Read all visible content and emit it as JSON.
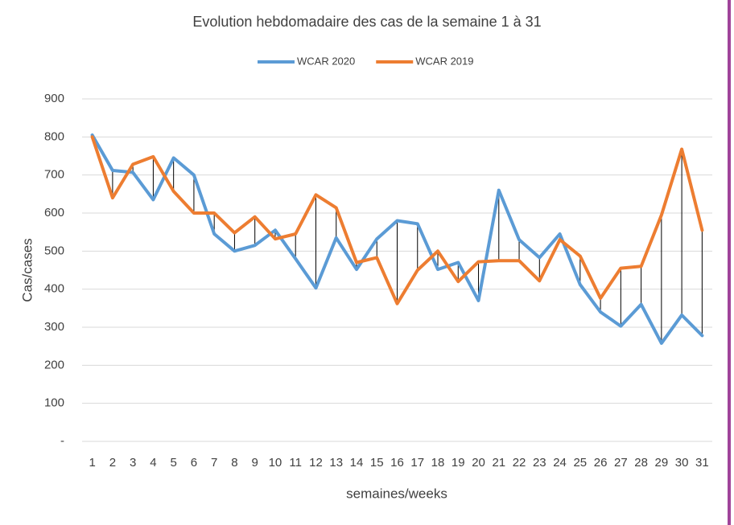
{
  "chart_data": {
    "type": "line",
    "title": "Evolution hebdomadaire des cas de la semaine 1 à 31",
    "x_label": "semaines/weeks",
    "y_label": "Cas/cases",
    "categories": [
      "1",
      "2",
      "3",
      "4",
      "5",
      "6",
      "7",
      "8",
      "9",
      "10",
      "11",
      "12",
      "13",
      "14",
      "15",
      "16",
      "17",
      "18",
      "19",
      "20",
      "21",
      "22",
      "23",
      "24",
      "25",
      "26",
      "27",
      "28",
      "29",
      "30",
      "31"
    ],
    "series": [
      {
        "name": "WCAR 2020",
        "color": "#5b9bd5",
        "values": [
          805,
          712,
          707,
          635,
          745,
          700,
          545,
          500,
          515,
          555,
          480,
          403,
          535,
          452,
          532,
          580,
          572,
          452,
          470,
          370,
          660,
          530,
          483,
          545,
          412,
          340,
          303,
          360,
          258,
          332,
          278
        ]
      },
      {
        "name": "WCAR 2019",
        "color": "#ed7d31",
        "values": [
          800,
          640,
          728,
          748,
          657,
          600,
          600,
          548,
          590,
          532,
          545,
          648,
          614,
          470,
          483,
          362,
          450,
          500,
          420,
          472,
          475,
          475,
          422,
          530,
          487,
          376,
          455,
          460,
          595,
          768,
          555
        ]
      }
    ],
    "ylim": [
      0,
      900
    ],
    "yticks": [
      {
        "value": 0,
        "label": "-"
      },
      100,
      200,
      300,
      400,
      500,
      600,
      700,
      800,
      900
    ],
    "grid": true,
    "high_low_lines": true,
    "legend": "top"
  }
}
